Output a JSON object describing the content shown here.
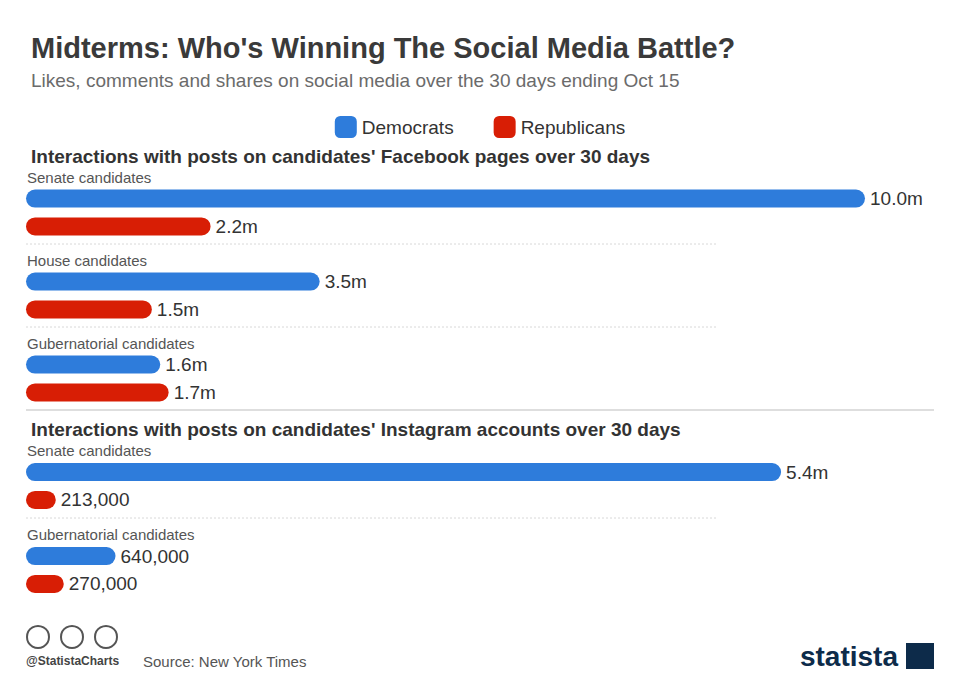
{
  "header": {
    "title": "Midterms: Who's Winning The Social Media Battle?",
    "subtitle": "Likes, comments and shares on social media over the 30 days ending Oct 15"
  },
  "chart_data": [
    {
      "type": "bar",
      "title": "Interactions with posts on candidates' Facebook pages over 30 days",
      "orientation": "horizontal",
      "legend": "top",
      "data_labels": true,
      "tick_labels": false,
      "grid": false,
      "categories": [
        "Senate candidates",
        "House candidates",
        "Gubernatorial candidates"
      ],
      "xlim": [
        0,
        10000000
      ],
      "xticks": [
        0,
        10000000
      ],
      "series": [
        {
          "name": "Democrats",
          "color": "#2e7cdb",
          "values": [
            10000000,
            3500000,
            1600000
          ],
          "value_labels": [
            "10.0m",
            "3.5m",
            "1.6m"
          ]
        },
        {
          "name": "Republicans",
          "color": "#d81e05",
          "values": [
            2200000,
            1500000,
            1700000
          ],
          "value_labels": [
            "2.2m",
            "1.5m",
            "1.7m"
          ]
        }
      ]
    },
    {
      "type": "bar",
      "title": "Interactions with posts on candidates' Instagram accounts over 30 days",
      "orientation": "horizontal",
      "data_labels": true,
      "tick_labels": false,
      "grid": false,
      "categories": [
        "Senate candidates",
        "Gubernatorial candidates"
      ],
      "xlim": [
        0,
        6000000
      ],
      "xticks": [
        0,
        6000000
      ],
      "series": [
        {
          "name": "Democrats",
          "color": "#2e7cdb",
          "values": [
            5400000,
            640000
          ],
          "value_labels": [
            "5.4m",
            "640,000"
          ]
        },
        {
          "name": "Republicans",
          "color": "#d81e05",
          "values": [
            213000,
            270000
          ],
          "value_labels": [
            "213,000",
            "270,000"
          ]
        }
      ]
    }
  ],
  "footer": {
    "handle": "@StatistaCharts",
    "source": "Source: New York Times",
    "brand": "statista"
  }
}
